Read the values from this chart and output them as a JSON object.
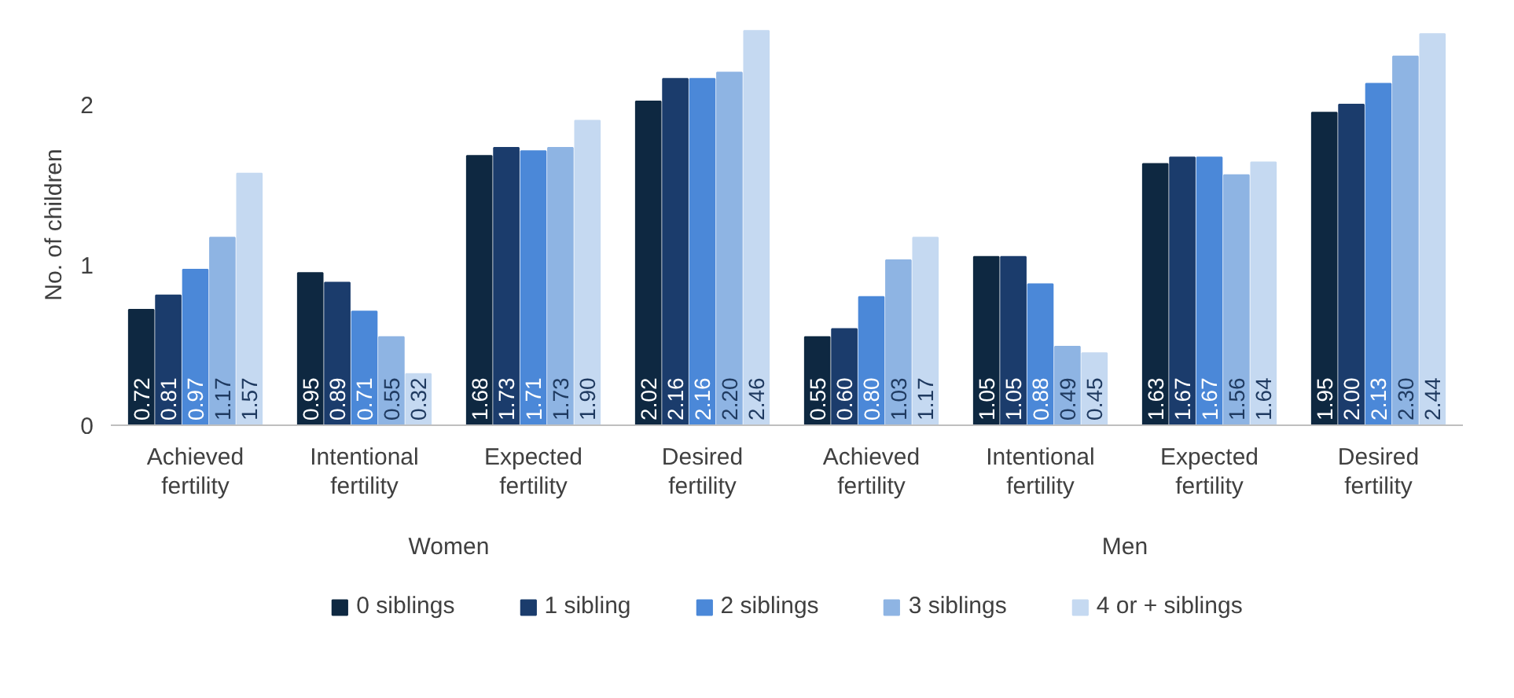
{
  "chart_data": {
    "type": "bar",
    "ylabel": "No. of children",
    "categories": [
      "Achieved fertility",
      "Intentional fertility",
      "Expected fertility",
      "Desired fertility",
      "Achieved fertility",
      "Intentional fertility",
      "Expected fertility",
      "Desired fertility"
    ],
    "series": [
      {
        "name": "0 siblings",
        "color": "#0e2841",
        "values": [
          0.72,
          0.95,
          1.68,
          2.02,
          0.55,
          1.05,
          1.63,
          1.95
        ]
      },
      {
        "name": "1 sibling",
        "color": "#1b3c6c",
        "values": [
          0.81,
          0.89,
          1.73,
          2.16,
          0.6,
          1.05,
          1.67,
          2.0
        ]
      },
      {
        "name": "2 siblings",
        "color": "#4b88d8",
        "values": [
          0.97,
          0.71,
          1.71,
          2.16,
          0.8,
          0.88,
          1.67,
          2.13
        ]
      },
      {
        "name": "3 siblings",
        "color": "#8eb4e3",
        "values": [
          1.17,
          0.55,
          1.73,
          2.2,
          1.03,
          0.49,
          1.56,
          2.3
        ]
      },
      {
        "name": "4 or + siblings",
        "color": "#c5d9f1",
        "values": [
          1.57,
          0.32,
          1.9,
          2.46,
          1.17,
          0.45,
          1.64,
          2.44
        ]
      }
    ],
    "annotations": [
      "Women",
      "Men"
    ],
    "value_labels": [
      [
        "0.72",
        "0.95",
        "1.68",
        "2.02",
        "0.55",
        "1.05",
        "1.63",
        "1.95"
      ],
      [
        "0.81",
        "0.89",
        "1.73",
        "2.16",
        "0.60",
        "1.05",
        "1.67",
        "2.00"
      ],
      [
        "0.97",
        "0.71",
        "1.71",
        "2.16",
        "0.80",
        "0.88",
        "1.67",
        "2.13"
      ],
      [
        "1.17",
        "0.55",
        "1.73",
        "2.20",
        "1.03",
        "0.49",
        "1.56",
        "2.30"
      ],
      [
        "1.57",
        "0.32",
        "1.90",
        "2.46",
        "1.17",
        "0.45",
        "1.64",
        "2.44"
      ]
    ],
    "ylim": [
      0,
      2.5
    ],
    "yticks": [
      0,
      1,
      2
    ],
    "legend": "bottom"
  }
}
